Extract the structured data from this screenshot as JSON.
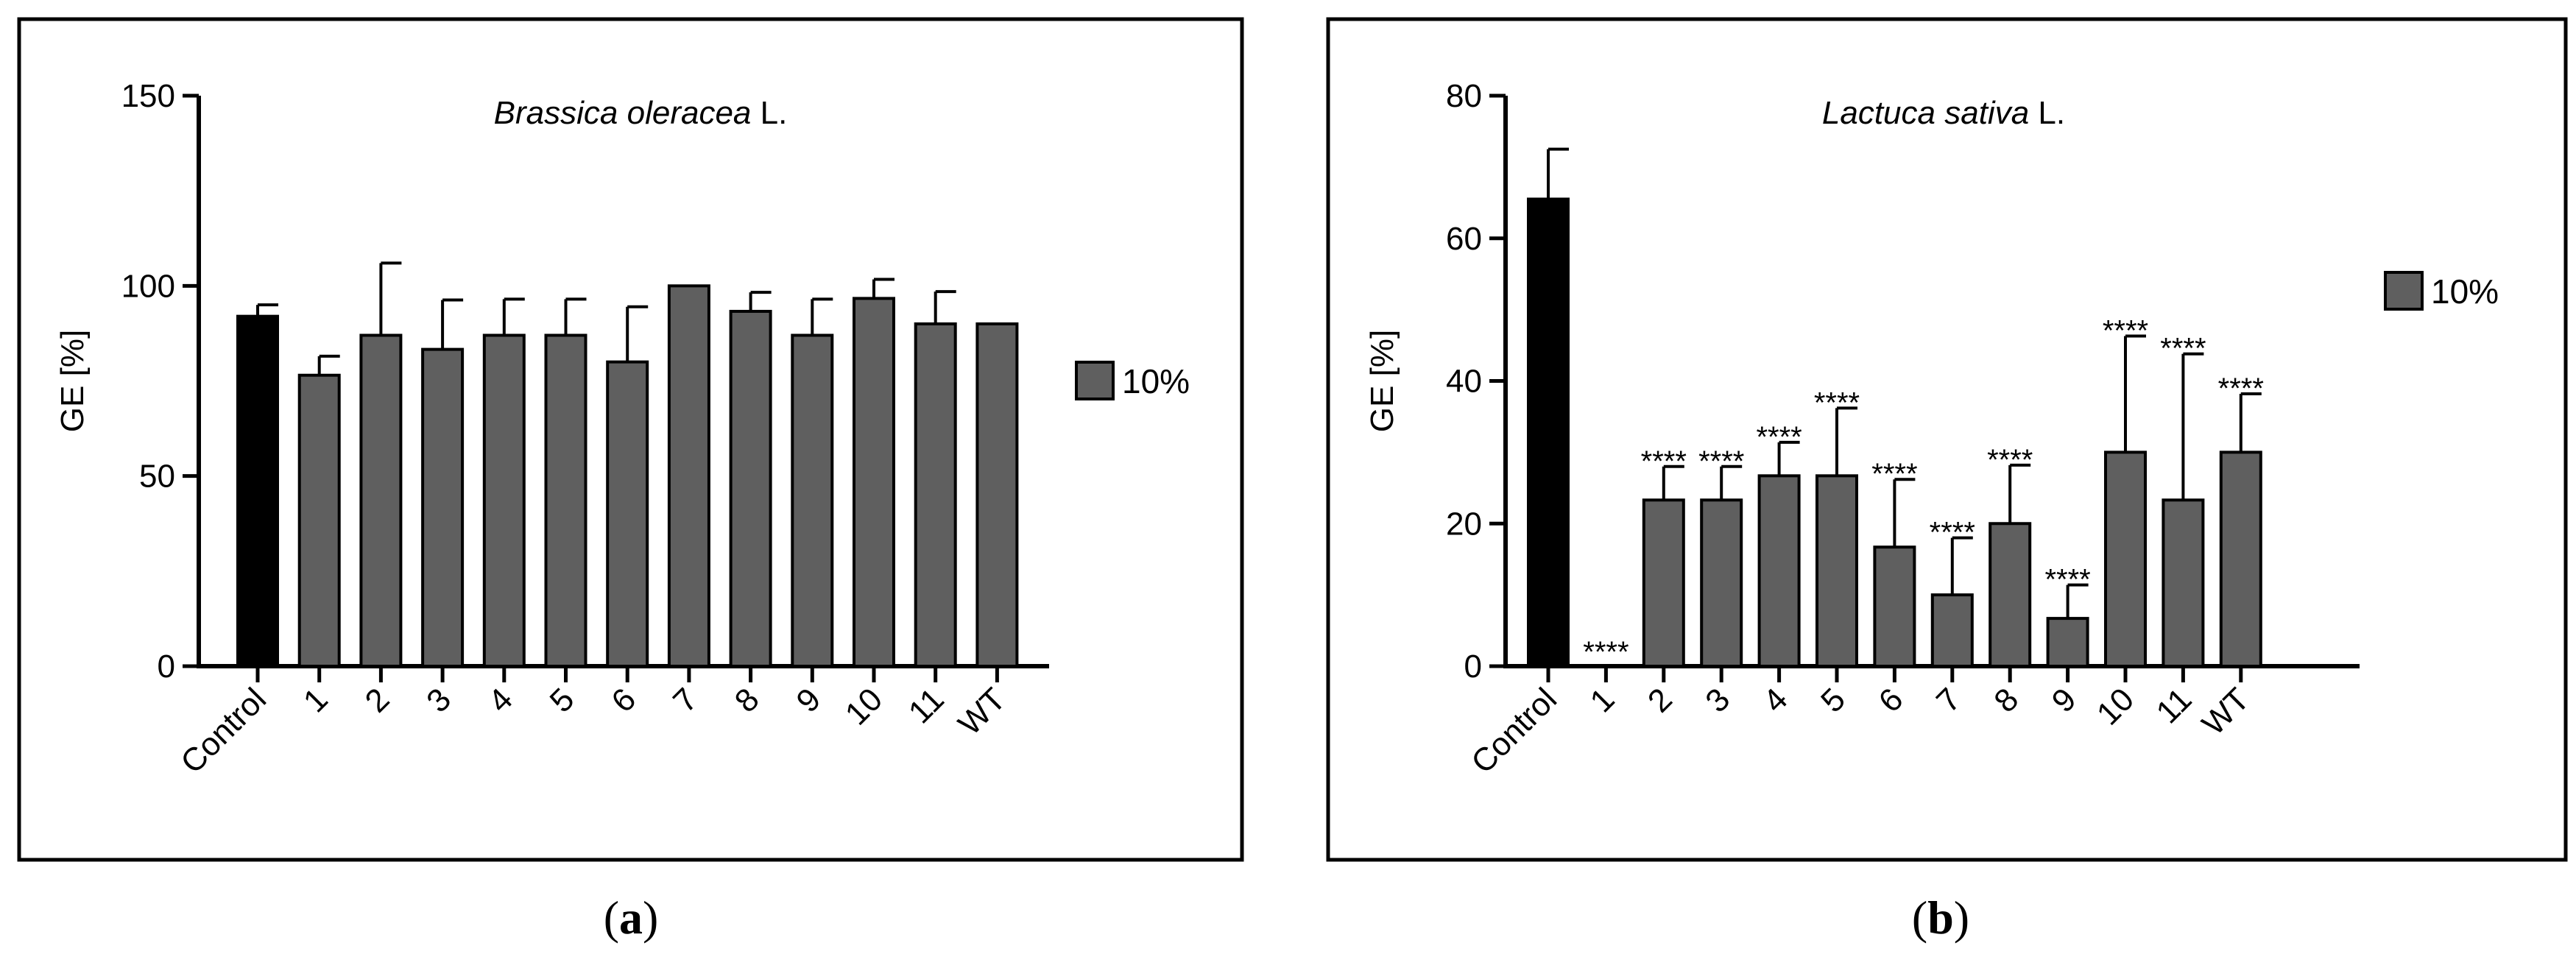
{
  "chart_data": [
    {
      "type": "bar",
      "title_italic": "Brassica oleracea",
      "title_rest": " L.",
      "ylabel": "GE [%]",
      "ylim": [
        0,
        150
      ],
      "yticks": [
        0,
        50,
        100,
        150
      ],
      "categories": [
        "Control",
        "1",
        "2",
        "3",
        "4",
        "5",
        "6",
        "7",
        "8",
        "9",
        "10",
        "11",
        "WT"
      ],
      "values": [
        92,
        76.5,
        87,
        83.3,
        87,
        87,
        80,
        100,
        93.3,
        87,
        96.7,
        90,
        90
      ],
      "errors": [
        3,
        5,
        19,
        13,
        9.5,
        9.5,
        14.5,
        0,
        5,
        9.5,
        5,
        8.5,
        0
      ],
      "significance": [
        "",
        "",
        "",
        "",
        "",
        "",
        "",
        "",
        "",
        "",
        "",
        "",
        ""
      ],
      "legend": "10%",
      "panel_label": "a",
      "colors": {
        "control": "#000000",
        "bar": "#5f5f5f"
      }
    },
    {
      "type": "bar",
      "title_italic": "Lactuca sativa",
      "title_rest": " L.",
      "ylabel": "GE [%]",
      "ylim": [
        0,
        80
      ],
      "yticks": [
        0,
        20,
        40,
        60,
        80
      ],
      "categories": [
        "Control",
        "1",
        "2",
        "3",
        "4",
        "5",
        "6",
        "7",
        "8",
        "9",
        "10",
        "11",
        "WT"
      ],
      "values": [
        65.5,
        0,
        23.3,
        23.3,
        26.7,
        26.7,
        16.7,
        10,
        20,
        6.7,
        30,
        23.3,
        30
      ],
      "errors": [
        7,
        0,
        4.7,
        4.7,
        4.7,
        9.5,
        9.5,
        8,
        8.2,
        4.7,
        16.3,
        20.5,
        8.2
      ],
      "significance": [
        "",
        "****",
        "****",
        "****",
        "****",
        "****",
        "****",
        "****",
        "****",
        "****",
        "****",
        "****",
        "****"
      ],
      "legend": "10%",
      "panel_label": "b",
      "colors": {
        "control": "#000000",
        "bar": "#5f5f5f"
      }
    }
  ]
}
